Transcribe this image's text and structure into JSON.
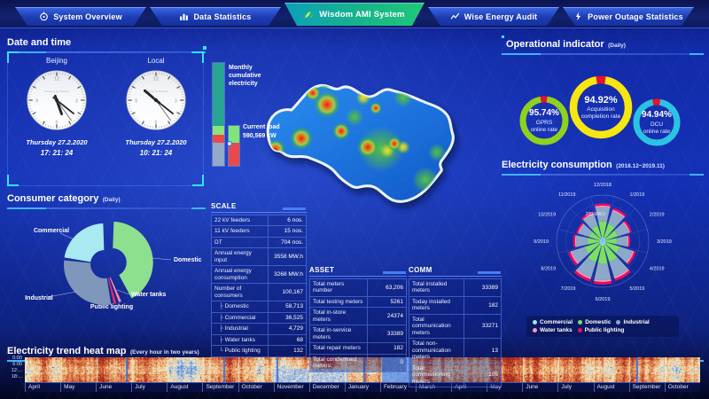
{
  "nav": {
    "active": "Wisdom AMI System",
    "tabs": [
      {
        "label": "System Overview"
      },
      {
        "label": "Data Statistics"
      },
      {
        "label": "Wisdom AMI System"
      },
      {
        "label": "Wise Energy Audit"
      },
      {
        "label": "Power Outage Statistics"
      }
    ]
  },
  "datetime_panel": {
    "title": "Date and time",
    "clocks": [
      {
        "label": "Beijing",
        "date": "Thursday 27.2.2020",
        "time": "17: 21: 24",
        "watermark": "Powered by Wisdom"
      },
      {
        "label": "Local",
        "date": "Thursday 27.2.2020",
        "time": "10: 21: 24",
        "watermark": "Powered by Wisdom"
      }
    ]
  },
  "consumer_panel": {
    "title": "Consumer category",
    "subtitle": "(Daily)"
  },
  "load_panel": {
    "monthly_bar_label": "Monthly cumulative electricity",
    "current_load_label": "Current load",
    "current_load_value": "590,569 kW"
  },
  "scale_table": {
    "title": "SCALE",
    "rows": [
      {
        "label": "22 kV feeders",
        "value": "6 nos."
      },
      {
        "label": "11 kV feeders",
        "value": "15 nos."
      },
      {
        "label": "DT",
        "value": "704 nos."
      },
      {
        "label": "Annual energy input",
        "value": "3558 MW.h"
      },
      {
        "label": "Annual energy consumption",
        "value": "3268 MW.h"
      },
      {
        "label": "Number of consumers",
        "value": "100,167"
      },
      {
        "label": "Domestic",
        "value": "58,713",
        "indent": true
      },
      {
        "label": "Commercial",
        "value": "36,525",
        "indent": true
      },
      {
        "label": "Industrial",
        "value": "4,729",
        "indent": true
      },
      {
        "label": "Water tanks",
        "value": "68",
        "indent": true
      },
      {
        "label": "Public lighting",
        "value": "132",
        "indent": true
      }
    ]
  },
  "asset_table": {
    "title": "ASSET",
    "rows": [
      {
        "label": "Total meters number",
        "value": "63,206"
      },
      {
        "label": "Total testing meters",
        "value": "5261"
      },
      {
        "label": "Total in-store meters",
        "value": "24374"
      },
      {
        "label": "Total in-service meters",
        "value": "33389"
      },
      {
        "label": "Total repair meters",
        "value": "182"
      },
      {
        "label": "Total condemned meters",
        "value": "0"
      }
    ]
  },
  "comm_table": {
    "title": "COMM",
    "rows": [
      {
        "label": "Total installed meters",
        "value": "33389"
      },
      {
        "label": "Today installed meters",
        "value": "182"
      },
      {
        "label": "Total communication meters",
        "value": "33271"
      },
      {
        "label": "Total non-communication meters",
        "value": "13"
      },
      {
        "label": "Total commissioning meters",
        "value": "105"
      }
    ]
  },
  "operational_panel": {
    "title": "Operational indicator",
    "subtitle": "(Daily)"
  },
  "consumption_panel": {
    "title": "Electricity consumption",
    "subtitle": "(2018.12~2019.11)"
  },
  "trend_panel": {
    "title": "Electricity trend heat map",
    "subtitle": "(Every hour in two years)"
  },
  "chart_data": [
    {
      "id": "consumer-category-pie",
      "type": "pie",
      "title": "Consumer category (Daily)",
      "categories": [
        "Domestic",
        "Water tanks",
        "Public lighting",
        "Industrial",
        "Commercial"
      ],
      "values": [
        41,
        2,
        2,
        29,
        22
      ],
      "unit": "% share (estimated from arc angles)",
      "colors": [
        "#8de08e",
        "#ff89b0",
        "#f2246b",
        "#7e97bb",
        "#a9e9f2"
      ],
      "exploded": "Domestic",
      "legend_position": "callout-labels"
    },
    {
      "id": "operational-gauges",
      "type": "pie",
      "subtype": "donut-gauges",
      "gauges": [
        {
          "label": "GPRS\nonline rate",
          "value": 95.74,
          "display": "95.74%",
          "color": "#8bd320"
        },
        {
          "label": "Acquisition\ncompletion rate",
          "value": 94.92,
          "display": "94.92%",
          "color": "#f6e711"
        },
        {
          "label": "DCU\nonline rate",
          "value": 94.94,
          "display": "94.94%",
          "color": "#27c4e5"
        }
      ],
      "remainder_color": "#e8112d"
    },
    {
      "id": "load-bars",
      "type": "bar",
      "bars": [
        {
          "name": "Monthly cumulative electricity",
          "segments": [
            {
              "name": "cumulative",
              "fraction": 0.61,
              "color": "#27a493"
            },
            {
              "name": "band-green",
              "fraction": 0.09,
              "color": "#8ce37d"
            },
            {
              "name": "band-red",
              "fraction": 0.08,
              "color": "#e84a4a"
            },
            {
              "name": "remaining",
              "fraction": 0.22,
              "color": "#93a9c8"
            }
          ]
        },
        {
          "name": "Current load",
          "segments": [
            {
              "name": "normal",
              "fraction": 0.43,
              "color": "#7fe57a"
            },
            {
              "name": "peak",
              "fraction": 0.57,
              "color": "#e84a4a"
            }
          ]
        }
      ]
    },
    {
      "id": "electricity-consumption-rose",
      "type": "pie",
      "subtype": "polar-rose-stacked",
      "title": "Electricity consumption (2018.12~2019.11)",
      "unit": "MW.h",
      "max": 250,
      "rings": [
        {
          "r": 100,
          "label": "100 MW.h"
        },
        {
          "r": 200,
          "label": "200 MW.h"
        }
      ],
      "categories": [
        "12/2018",
        "1/2019",
        "2/2019",
        "3/2019",
        "4/2019",
        "5/2019",
        "6/2019",
        "7/2019",
        "8/2019",
        "9/2019",
        "10/2019",
        "11/2019"
      ],
      "series": [
        {
          "name": "Commercial",
          "color": "#9fe9f5",
          "values": [
            21,
            19,
            17,
            15,
            19,
            23,
            24,
            23,
            20,
            16,
            15,
            17
          ]
        },
        {
          "name": "Domestic",
          "color": "#7ddf64",
          "values": [
            86,
            80,
            69,
            63,
            80,
            95,
            99,
            97,
            82,
            67,
            63,
            71
          ]
        },
        {
          "name": "Industrial",
          "color": "#8ea8c9",
          "values": [
            78,
            72,
            63,
            57,
            72,
            86,
            89,
            87,
            74,
            61,
            57,
            65
          ]
        },
        {
          "name": "Water tanks",
          "color": "#f79ac0",
          "values": [
            8,
            8,
            7,
            6,
            8,
            9,
            9,
            9,
            8,
            6,
            6,
            7
          ]
        },
        {
          "name": "Public lighting",
          "color": "#f2095c",
          "values": [
            12,
            11,
            10,
            9,
            11,
            14,
            14,
            14,
            12,
            10,
            9,
            10
          ]
        }
      ],
      "legend_rows": [
        [
          "Commercial",
          "Domestic",
          "Industrial"
        ],
        [
          "Water tanks",
          "Public lighting"
        ]
      ]
    },
    {
      "id": "electricity-trend-heatmap",
      "type": "heatmap",
      "x_labels": [
        "April",
        "May",
        "June",
        "July",
        "August",
        "September",
        "October",
        "November",
        "December",
        "January",
        "February",
        "March",
        "April",
        "May",
        "June",
        "July",
        "August",
        "September",
        "October"
      ],
      "y_labels": [
        "0:00",
        "6:00",
        "12:...",
        "18:..."
      ]
    }
  ]
}
